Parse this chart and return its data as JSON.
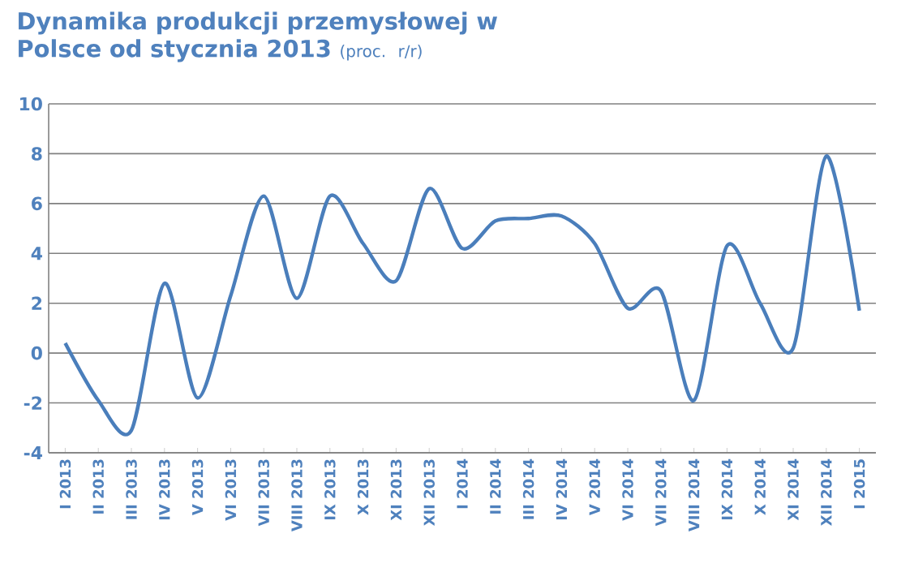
{
  "chart_data": {
    "type": "line",
    "title": "Dynamika produkcji przemysłowej w Polsce od stycznia 2013",
    "subtitle": "(proc. r/r)",
    "categories": [
      "I 2013",
      "II 2013",
      "III 2013",
      "IV 2013",
      "V 2013",
      "VI 2013",
      "VII 2013",
      "VIII 2013",
      "IX 2013",
      "X 2013",
      "XI 2013",
      "XII 2013",
      "I 2014",
      "II 2014",
      "III 2014",
      "IV 2014",
      "V 2014",
      "VI 2014",
      "VII 2014",
      "VIII 2014",
      "IX 2014",
      "X 2014",
      "XI 2014",
      "XII 2014",
      "I 2015"
    ],
    "values": [
      0.4,
      -1.9,
      -3.1,
      2.8,
      -1.8,
      2.3,
      6.3,
      2.2,
      6.3,
      4.4,
      2.9,
      6.6,
      4.2,
      5.3,
      5.4,
      5.5,
      4.4,
      1.8,
      2.5,
      -1.9,
      4.3,
      2.0,
      0.2,
      7.9,
      1.7
    ],
    "color": "#4a7ebb",
    "ylim": [
      -4,
      10
    ],
    "yticks": [
      -4,
      -2,
      0,
      2,
      4,
      6,
      8,
      10
    ],
    "grid": "y",
    "marker": "none",
    "line_style": "solid"
  }
}
